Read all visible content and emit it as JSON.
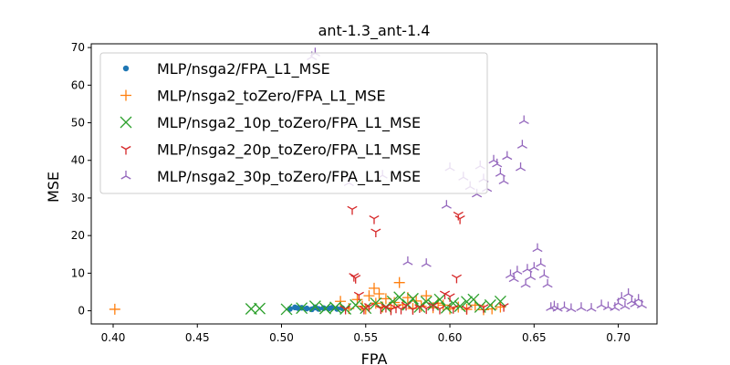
{
  "chart_data": {
    "type": "scatter",
    "title": "ant-1.3_ant-1.4",
    "xlabel": "FPA",
    "ylabel": "MSE",
    "xlim": [
      0.387,
      0.723
    ],
    "ylim": [
      -3.5,
      71
    ],
    "xticks": [
      0.4,
      0.45,
      0.5,
      0.55,
      0.6,
      0.65,
      0.7
    ],
    "xtick_labels": [
      "0.40",
      "0.45",
      "0.50",
      "0.55",
      "0.60",
      "0.65",
      "0.70"
    ],
    "yticks": [
      0,
      10,
      20,
      30,
      40,
      50,
      60,
      70
    ],
    "ytick_labels": [
      "0",
      "10",
      "20",
      "30",
      "40",
      "50",
      "60",
      "70"
    ],
    "grid": false,
    "legend_position": "top-left",
    "series": [
      {
        "name": "MLP/nsga2/FPA_L1_MSE",
        "marker": "circle",
        "color": "#1f77b4",
        "points": [
          [
            0.505,
            0.5
          ],
          [
            0.508,
            0.9
          ],
          [
            0.51,
            0.7
          ],
          [
            0.512,
            0.8
          ],
          [
            0.515,
            0.6
          ],
          [
            0.518,
            0.4
          ],
          [
            0.52,
            0.9
          ],
          [
            0.522,
            0.5
          ],
          [
            0.525,
            0.7
          ],
          [
            0.528,
            0.6
          ],
          [
            0.53,
            0.8
          ],
          [
            0.533,
            0.5
          ],
          [
            0.536,
            0.7
          ]
        ]
      },
      {
        "name": "MLP/nsga2_toZero/FPA_L1_MSE",
        "marker": "plus",
        "color": "#ff7f0e",
        "points": [
          [
            0.401,
            0.4
          ],
          [
            0.535,
            2.5
          ],
          [
            0.54,
            0.6
          ],
          [
            0.545,
            3.0
          ],
          [
            0.548,
            1.2
          ],
          [
            0.55,
            0.5
          ],
          [
            0.552,
            4.0
          ],
          [
            0.555,
            6.0
          ],
          [
            0.556,
            2.0
          ],
          [
            0.558,
            4.5
          ],
          [
            0.56,
            1.0
          ],
          [
            0.562,
            3.2
          ],
          [
            0.565,
            0.7
          ],
          [
            0.567,
            2.2
          ],
          [
            0.57,
            7.5
          ],
          [
            0.572,
            1.6
          ],
          [
            0.575,
            3.5
          ],
          [
            0.578,
            0.6
          ],
          [
            0.58,
            2.6
          ],
          [
            0.583,
            1.2
          ],
          [
            0.586,
            4.0
          ],
          [
            0.59,
            0.8
          ],
          [
            0.593,
            2.0
          ],
          [
            0.596,
            1.5
          ],
          [
            0.6,
            0.5
          ],
          [
            0.605,
            1.0
          ],
          [
            0.61,
            0.4
          ],
          [
            0.615,
            1.5
          ],
          [
            0.62,
            0.3
          ],
          [
            0.625,
            0.5
          ],
          [
            0.63,
            1.0
          ]
        ]
      },
      {
        "name": "MLP/nsga2_10p_toZero/FPA_L1_MSE",
        "marker": "x",
        "color": "#2ca02c",
        "points": [
          [
            0.482,
            0.5
          ],
          [
            0.487,
            0.6
          ],
          [
            0.503,
            0.4
          ],
          [
            0.512,
            0.7
          ],
          [
            0.52,
            1.2
          ],
          [
            0.526,
            0.6
          ],
          [
            0.532,
            0.9
          ],
          [
            0.538,
            0.5
          ],
          [
            0.544,
            1.5
          ],
          [
            0.55,
            0.7
          ],
          [
            0.556,
            2.0
          ],
          [
            0.562,
            1.0
          ],
          [
            0.566,
            2.5
          ],
          [
            0.57,
            3.6
          ],
          [
            0.575,
            1.6
          ],
          [
            0.578,
            3.2
          ],
          [
            0.582,
            1.0
          ],
          [
            0.586,
            2.4
          ],
          [
            0.59,
            1.6
          ],
          [
            0.594,
            3.0
          ],
          [
            0.598,
            0.8
          ],
          [
            0.602,
            2.0
          ],
          [
            0.606,
            1.2
          ],
          [
            0.61,
            2.4
          ],
          [
            0.614,
            3.0
          ],
          [
            0.618,
            1.0
          ],
          [
            0.624,
            1.5
          ],
          [
            0.63,
            2.5
          ]
        ]
      },
      {
        "name": "MLP/nsga2_20p_toZero/FPA_L1_MSE",
        "marker": "tri_down",
        "color": "#d62728",
        "points": [
          [
            0.538,
            0.5
          ],
          [
            0.542,
            27.0
          ],
          [
            0.543,
            9.2
          ],
          [
            0.544,
            8.7
          ],
          [
            0.546,
            4.2
          ],
          [
            0.549,
            0.5
          ],
          [
            0.552,
            1.2
          ],
          [
            0.555,
            24.5
          ],
          [
            0.556,
            21.0
          ],
          [
            0.559,
            0.6
          ],
          [
            0.562,
            1.0
          ],
          [
            0.565,
            0.3
          ],
          [
            0.568,
            0.8
          ],
          [
            0.571,
            0.5
          ],
          [
            0.574,
            1.5
          ],
          [
            0.578,
            0.4
          ],
          [
            0.582,
            0.9
          ],
          [
            0.586,
            0.6
          ],
          [
            0.59,
            1.4
          ],
          [
            0.594,
            0.5
          ],
          [
            0.597,
            4.5
          ],
          [
            0.6,
            3.8
          ],
          [
            0.602,
            0.7
          ],
          [
            0.604,
            8.8
          ],
          [
            0.605,
            25.5
          ],
          [
            0.606,
            24.5
          ],
          [
            0.61,
            0.5
          ],
          [
            0.62,
            0.9
          ],
          [
            0.632,
            1.2
          ]
        ]
      },
      {
        "name": "MLP/nsga2_30p_toZero/FPA_L1_MSE",
        "marker": "tri_up",
        "color": "#9467bd",
        "points": [
          [
            0.518,
            67.5
          ],
          [
            0.52,
            68.5
          ],
          [
            0.54,
            34.0
          ],
          [
            0.56,
            36.0
          ],
          [
            0.575,
            13.0
          ],
          [
            0.586,
            12.5
          ],
          [
            0.598,
            28.0
          ],
          [
            0.6,
            38.0
          ],
          [
            0.608,
            35.5
          ],
          [
            0.612,
            33.0
          ],
          [
            0.616,
            31.0
          ],
          [
            0.618,
            38.5
          ],
          [
            0.62,
            35.0
          ],
          [
            0.622,
            32.5
          ],
          [
            0.626,
            40.0
          ],
          [
            0.628,
            39.0
          ],
          [
            0.63,
            36.5
          ],
          [
            0.632,
            34.5
          ],
          [
            0.634,
            41.0
          ],
          [
            0.636,
            9.5
          ],
          [
            0.638,
            8.5
          ],
          [
            0.64,
            10.5
          ],
          [
            0.642,
            38.0
          ],
          [
            0.643,
            44.0
          ],
          [
            0.644,
            50.5
          ],
          [
            0.645,
            7.0
          ],
          [
            0.646,
            11.0
          ],
          [
            0.648,
            9.0
          ],
          [
            0.65,
            11.5
          ],
          [
            0.652,
            16.5
          ],
          [
            0.654,
            12.5
          ],
          [
            0.656,
            9.5
          ],
          [
            0.658,
            7.0
          ],
          [
            0.66,
            0.8
          ],
          [
            0.662,
            1.2
          ],
          [
            0.664,
            0.6
          ],
          [
            0.668,
            1.0
          ],
          [
            0.672,
            0.5
          ],
          [
            0.678,
            0.8
          ],
          [
            0.684,
            0.6
          ],
          [
            0.69,
            1.5
          ],
          [
            0.694,
            1.0
          ],
          [
            0.698,
            0.8
          ],
          [
            0.7,
            2.0
          ],
          [
            0.702,
            3.5
          ],
          [
            0.704,
            1.2
          ],
          [
            0.706,
            4.5
          ],
          [
            0.708,
            2.5
          ],
          [
            0.71,
            1.8
          ],
          [
            0.712,
            3.0
          ],
          [
            0.714,
            1.5
          ]
        ]
      }
    ]
  }
}
